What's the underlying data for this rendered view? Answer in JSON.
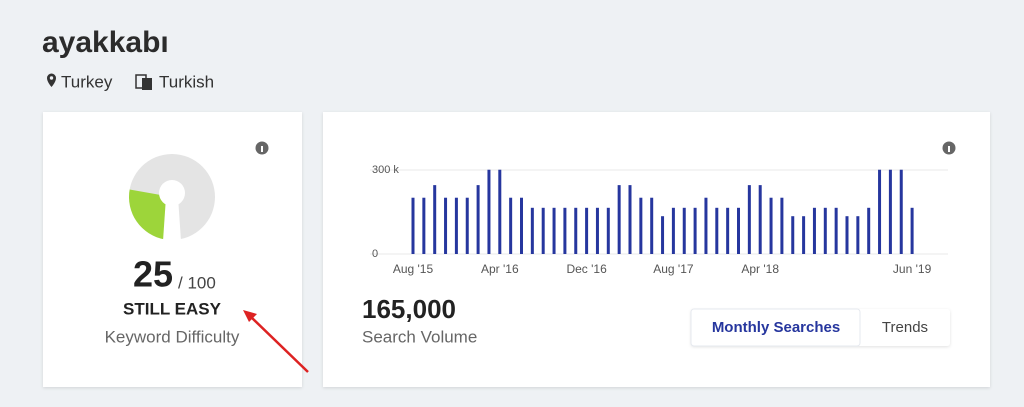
{
  "header": {
    "title": "ayakkabı",
    "location": "Turkey",
    "language": "Turkish"
  },
  "difficulty": {
    "score": 25,
    "max": {
      "value": 100,
      "label": "/ 100"
    },
    "verdict": "STILL EASY",
    "label": "Keyword Difficulty",
    "color": "#9dd53a"
  },
  "volume": {
    "value": "165,000",
    "label": "Search Volume"
  },
  "tabs": [
    "Monthly Searches",
    "Trends"
  ],
  "chart_data": {
    "type": "bar",
    "color": "#26369e",
    "categories": [
      "Aug '15",
      null,
      null,
      null,
      null,
      null,
      null,
      null,
      "Apr '16",
      null,
      null,
      null,
      null,
      null,
      null,
      null,
      "Dec '16",
      null,
      null,
      null,
      null,
      null,
      null,
      null,
      "Aug '17",
      null,
      null,
      null,
      null,
      null,
      null,
      null,
      "Apr '18",
      null,
      null,
      null,
      null,
      null,
      null,
      null,
      null,
      null,
      null,
      null,
      null,
      null,
      "Jun '19"
    ],
    "values": [
      201000,
      201000,
      246000,
      201000,
      201000,
      201000,
      246000,
      301000,
      301000,
      201000,
      201000,
      165000,
      165000,
      165000,
      165000,
      165000,
      165000,
      165000,
      165000,
      246000,
      246000,
      201000,
      201000,
      135000,
      165000,
      165000,
      165000,
      201000,
      165000,
      165000,
      165000,
      246000,
      246000,
      201000,
      201000,
      135000,
      135000,
      165000,
      165000,
      165000,
      135000,
      135000,
      165000,
      301000,
      301000,
      301000,
      165000
    ],
    "ylim": [
      0,
      300000
    ],
    "yticks": [
      0,
      {
        "value": 300000,
        "label": "300 k"
      }
    ],
    "grid": true
  }
}
